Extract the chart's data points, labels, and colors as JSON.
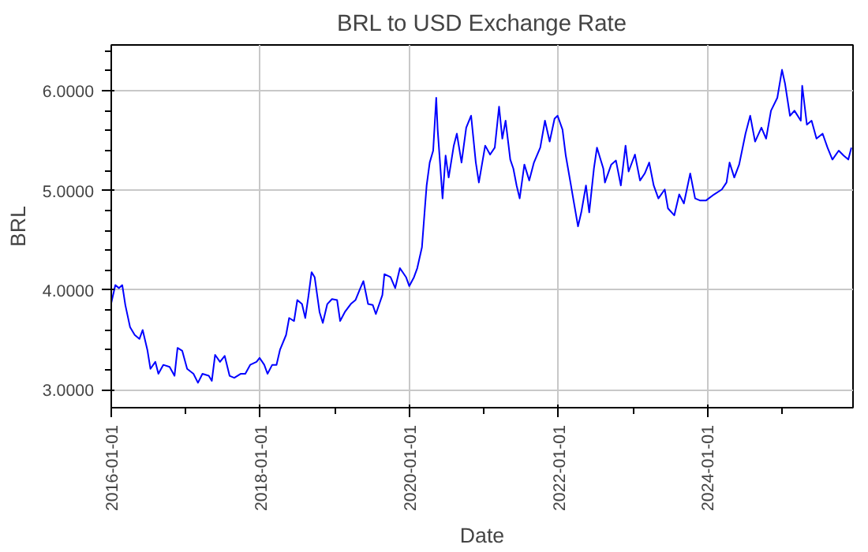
{
  "chart_data": {
    "type": "line",
    "title": "BRL to USD Exchange Rate",
    "xlabel": "Date",
    "ylabel": "BRL",
    "xlim": [
      "2016-01-01",
      "2025-12-15"
    ],
    "ylim": [
      2.82,
      6.46
    ],
    "xticks": [
      "2016-01-01",
      "2018-01-01",
      "2020-01-01",
      "2022-01-01",
      "2024-01-01"
    ],
    "yticks": [
      {
        "value": 3,
        "label": "3.0000"
      },
      {
        "value": 4,
        "label": "4.0000"
      },
      {
        "value": 5,
        "label": "5.0000"
      },
      {
        "value": 6,
        "label": "6.0000"
      }
    ],
    "grid": true,
    "line_style": "solid",
    "x": [
      "2016-01-01",
      "2016-01-21",
      "2016-02-08",
      "2016-02-24",
      "2016-03-10",
      "2016-04-02",
      "2016-04-25",
      "2016-05-18",
      "2016-06-03",
      "2016-06-26",
      "2016-07-11",
      "2016-08-04",
      "2016-08-19",
      "2016-09-12",
      "2016-10-13",
      "2016-11-06",
      "2016-11-21",
      "2016-12-14",
      "2017-01-07",
      "2017-02-07",
      "2017-03-01",
      "2017-03-23",
      "2017-04-23",
      "2017-05-08",
      "2017-05-24",
      "2017-06-17",
      "2017-07-10",
      "2017-08-03",
      "2017-08-26",
      "2017-09-26",
      "2017-10-19",
      "2017-11-12",
      "2017-12-13",
      "2017-12-28",
      "2018-01-20",
      "2018-02-05",
      "2018-02-28",
      "2018-03-21",
      "2018-04-07",
      "2018-05-07",
      "2018-05-22",
      "2018-06-15",
      "2018-07-01",
      "2018-07-24",
      "2018-08-09",
      "2018-08-24",
      "2018-09-09",
      "2018-09-24",
      "2018-10-18",
      "2018-11-03",
      "2018-11-25",
      "2018-12-18",
      "2019-01-12",
      "2019-01-27",
      "2019-02-19",
      "2019-03-20",
      "2019-04-12",
      "2019-05-06",
      "2019-05-21",
      "2019-06-13",
      "2019-07-06",
      "2019-07-21",
      "2019-08-22",
      "2019-09-01",
      "2019-10-01",
      "2019-10-24",
      "2019-11-16",
      "2019-12-16",
      "2020-01-01",
      "2020-01-24",
      "2020-02-09",
      "2020-03-03",
      "2020-03-18",
      "2020-03-26",
      "2020-04-10",
      "2020-04-27",
      "2020-05-12",
      "2020-05-19",
      "2020-06-12",
      "2020-06-27",
      "2020-07-12",
      "2020-08-06",
      "2020-08-21",
      "2020-09-13",
      "2020-10-06",
      "2020-10-30",
      "2020-11-22",
      "2020-12-07",
      "2021-01-07",
      "2021-01-31",
      "2021-02-23",
      "2021-03-16",
      "2021-04-01",
      "2021-04-17",
      "2021-05-10",
      "2021-05-25",
      "2021-06-10",
      "2021-06-25",
      "2021-07-18",
      "2021-08-11",
      "2021-09-03",
      "2021-10-04",
      "2021-10-27",
      "2021-11-19",
      "2021-12-13",
      "2021-12-28",
      "2022-01-21",
      "2022-02-06",
      "2022-03-01",
      "2022-03-16",
      "2022-04-07",
      "2022-04-23",
      "2022-05-16",
      "2022-06-01",
      "2022-06-24",
      "2022-07-09",
      "2022-08-09",
      "2022-08-17",
      "2022-09-17",
      "2022-10-10",
      "2022-11-03",
      "2022-11-26",
      "2022-12-11",
      "2023-01-11",
      "2023-02-05",
      "2023-02-28",
      "2023-03-22",
      "2023-04-13",
      "2023-05-06",
      "2023-06-06",
      "2023-06-22",
      "2023-07-23",
      "2023-08-16",
      "2023-09-08",
      "2023-10-09",
      "2023-11-02",
      "2023-11-25",
      "2023-12-26",
      "2024-02-03",
      "2024-03-12",
      "2024-04-04",
      "2024-04-19",
      "2024-05-12",
      "2024-06-05",
      "2024-07-06",
      "2024-07-29",
      "2024-08-22",
      "2024-09-22",
      "2024-10-15",
      "2024-11-08",
      "2024-12-09",
      "2025-01-01",
      "2025-01-16",
      "2025-02-09",
      "2025-03-03",
      "2025-04-03",
      "2025-04-10",
      "2025-05-03",
      "2025-05-26",
      "2025-06-19",
      "2025-07-19",
      "2025-08-12",
      "2025-09-05",
      "2025-10-06",
      "2025-10-30",
      "2025-11-22",
      "2025-12-07"
    ],
    "series": [
      {
        "color": "#0000ff",
        "values": [
          3.87,
          4.05,
          4.02,
          4.05,
          3.85,
          3.63,
          3.55,
          3.51,
          3.6,
          3.4,
          3.21,
          3.28,
          3.16,
          3.25,
          3.23,
          3.14,
          3.42,
          3.39,
          3.21,
          3.16,
          3.07,
          3.16,
          3.14,
          3.09,
          3.35,
          3.28,
          3.34,
          3.14,
          3.12,
          3.16,
          3.16,
          3.25,
          3.28,
          3.32,
          3.25,
          3.16,
          3.25,
          3.25,
          3.4,
          3.55,
          3.72,
          3.69,
          3.9,
          3.86,
          3.72,
          3.93,
          4.18,
          4.13,
          3.78,
          3.67,
          3.86,
          3.91,
          3.9,
          3.69,
          3.78,
          3.86,
          3.9,
          4.02,
          4.09,
          3.86,
          3.85,
          3.76,
          3.95,
          4.16,
          4.13,
          4.02,
          4.22,
          4.13,
          4.04,
          4.13,
          4.22,
          4.43,
          4.84,
          5.05,
          5.28,
          5.4,
          5.93,
          5.61,
          4.92,
          5.35,
          5.13,
          5.45,
          5.57,
          5.28,
          5.63,
          5.75,
          5.28,
          5.08,
          5.45,
          5.36,
          5.43,
          5.84,
          5.52,
          5.7,
          5.31,
          5.22,
          5.05,
          4.92,
          5.26,
          5.1,
          5.28,
          5.43,
          5.7,
          5.49,
          5.72,
          5.75,
          5.61,
          5.35,
          5.08,
          4.9,
          4.64,
          4.78,
          5.05,
          4.78,
          5.22,
          5.43,
          5.22,
          5.08,
          5.26,
          5.3,
          5.05,
          5.45,
          5.19,
          5.36,
          5.1,
          5.17,
          5.28,
          5.05,
          4.92,
          5.01,
          4.82,
          4.75,
          4.96,
          4.87,
          5.17,
          4.92,
          4.9,
          4.9,
          4.96,
          5.01,
          5.08,
          5.28,
          5.13,
          5.26,
          5.57,
          5.75,
          5.49,
          5.63,
          5.52,
          5.8,
          5.93,
          6.21,
          6.07,
          5.75,
          5.8,
          5.7,
          6.05,
          5.66,
          5.7,
          5.52,
          5.57,
          5.43,
          5.31,
          5.4,
          5.35,
          5.31,
          5.43
        ]
      }
    ]
  }
}
